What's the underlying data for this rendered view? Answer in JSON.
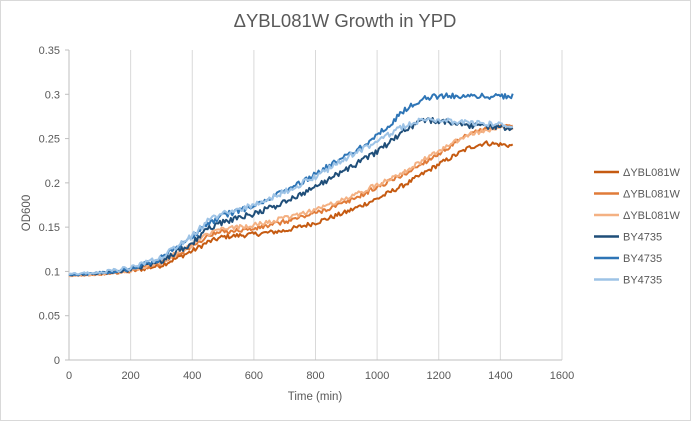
{
  "chart_data": {
    "type": "line",
    "title": "ΔYBL081W Growth in YPD",
    "xlabel": "Time (min)",
    "ylabel": "OD600",
    "xlim": [
      0,
      1600
    ],
    "ylim": [
      0,
      0.35
    ],
    "x_ticks": [
      0,
      200,
      400,
      600,
      800,
      1000,
      1200,
      1400,
      1600
    ],
    "y_ticks": [
      "0",
      "0.05",
      "0.1",
      "0.15",
      "0.2",
      "0.25",
      "0.3",
      "0.35"
    ],
    "grid": "vertical",
    "legend_position": "right",
    "series": [
      {
        "name": "ΔYBL081W",
        "color": "#c55a11",
        "noise": 0.002,
        "x": [
          0,
          100,
          200,
          300,
          400,
          450,
          500,
          600,
          700,
          800,
          900,
          1000,
          1100,
          1200,
          1300,
          1350,
          1440
        ],
        "y": [
          0.095,
          0.097,
          0.1,
          0.107,
          0.123,
          0.133,
          0.139,
          0.142,
          0.146,
          0.155,
          0.167,
          0.182,
          0.2,
          0.221,
          0.24,
          0.245,
          0.242
        ]
      },
      {
        "name": "ΔYBL081W",
        "color": "#e07b39",
        "noise": 0.002,
        "x": [
          0,
          100,
          200,
          300,
          400,
          450,
          500,
          600,
          700,
          800,
          900,
          1000,
          1100,
          1200,
          1300,
          1400,
          1440
        ],
        "y": [
          0.095,
          0.097,
          0.101,
          0.11,
          0.128,
          0.14,
          0.145,
          0.148,
          0.156,
          0.166,
          0.178,
          0.195,
          0.212,
          0.233,
          0.255,
          0.265,
          0.265
        ]
      },
      {
        "name": "ΔYBL081W",
        "color": "#f4b183",
        "noise": 0.002,
        "x": [
          0,
          100,
          200,
          300,
          400,
          450,
          500,
          600,
          700,
          800,
          900,
          1000,
          1100,
          1200,
          1300,
          1400,
          1440
        ],
        "y": [
          0.095,
          0.097,
          0.101,
          0.111,
          0.13,
          0.142,
          0.148,
          0.152,
          0.16,
          0.17,
          0.182,
          0.198,
          0.215,
          0.236,
          0.255,
          0.262,
          0.26
        ]
      },
      {
        "name": "BY4735",
        "color": "#1f4e79",
        "noise": 0.0025,
        "x": [
          0,
          100,
          200,
          300,
          400,
          450,
          500,
          600,
          700,
          800,
          900,
          1000,
          1100,
          1150,
          1200,
          1300,
          1440
        ],
        "y": [
          0.096,
          0.098,
          0.102,
          0.112,
          0.132,
          0.148,
          0.156,
          0.165,
          0.178,
          0.196,
          0.215,
          0.235,
          0.262,
          0.27,
          0.27,
          0.265,
          0.262
        ]
      },
      {
        "name": "BY4735",
        "color": "#2e75b6",
        "noise": 0.0025,
        "x": [
          0,
          100,
          200,
          300,
          400,
          450,
          500,
          600,
          700,
          800,
          900,
          1000,
          1100,
          1150,
          1200,
          1300,
          1440
        ],
        "y": [
          0.096,
          0.098,
          0.103,
          0.115,
          0.138,
          0.154,
          0.163,
          0.174,
          0.19,
          0.21,
          0.23,
          0.253,
          0.285,
          0.295,
          0.298,
          0.298,
          0.298
        ]
      },
      {
        "name": "BY4735",
        "color": "#9dc3e6",
        "noise": 0.0025,
        "x": [
          0,
          100,
          200,
          300,
          400,
          450,
          500,
          600,
          700,
          800,
          900,
          1000,
          1100,
          1150,
          1200,
          1300,
          1440
        ],
        "y": [
          0.097,
          0.099,
          0.104,
          0.116,
          0.14,
          0.157,
          0.165,
          0.175,
          0.19,
          0.207,
          0.228,
          0.247,
          0.266,
          0.272,
          0.27,
          0.268,
          0.265
        ]
      }
    ]
  }
}
